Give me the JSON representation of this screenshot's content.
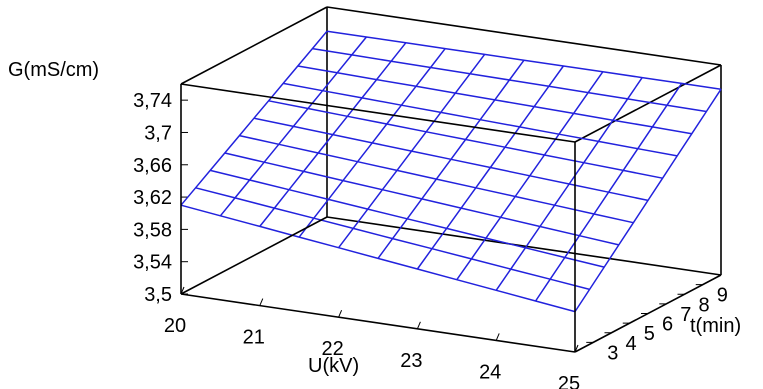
{
  "chart_data": {
    "type": "surface",
    "title": "",
    "xlabel": "U(kV)",
    "ylabel": "t(min)",
    "zlabel": "G(mS/cm)",
    "xlim": [
      20,
      25
    ],
    "ylim": [
      2,
      10
    ],
    "zlim": [
      3.5,
      3.76
    ],
    "x_ticks": [
      "20",
      "21",
      "22",
      "23",
      "24",
      "25"
    ],
    "y_ticks": [
      "3",
      "4",
      "5",
      "6",
      "7",
      "8",
      "9"
    ],
    "z_ticks": [
      "3,5",
      "3,54",
      "3,58",
      "3,62",
      "3,66",
      "3,7",
      "3,74"
    ],
    "surface_color": "#2222dd",
    "grid": false,
    "corners": {
      "U20_t2": 3.61,
      "U25_t2": 3.55,
      "U20_t10": 3.73,
      "U25_t10": 3.73
    }
  }
}
